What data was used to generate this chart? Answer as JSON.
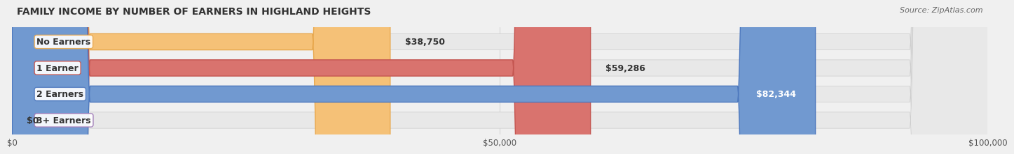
{
  "title": "FAMILY INCOME BY NUMBER OF EARNERS IN HIGHLAND HEIGHTS",
  "source": "Source: ZipAtlas.com",
  "categories": [
    "No Earners",
    "1 Earner",
    "2 Earners",
    "3+ Earners"
  ],
  "values": [
    38750,
    59286,
    82344,
    0
  ],
  "bar_colors": [
    "#f5c177",
    "#d9736e",
    "#7199d0",
    "#c8a8d8"
  ],
  "bar_edge_colors": [
    "#e8a84e",
    "#c45550",
    "#4d78be",
    "#a07ab8"
  ],
  "label_colors": [
    "#555555",
    "#555555",
    "#ffffff",
    "#555555"
  ],
  "x_max": 100000,
  "x_ticks": [
    0,
    50000,
    100000
  ],
  "x_tick_labels": [
    "$0",
    "$50,000",
    "$100,000"
  ],
  "bg_color": "#f0f0f0",
  "bar_bg_color": "#e8e8e8",
  "title_fontsize": 10,
  "source_fontsize": 8,
  "bar_label_fontsize": 9,
  "cat_label_fontsize": 9,
  "tick_fontsize": 8.5
}
